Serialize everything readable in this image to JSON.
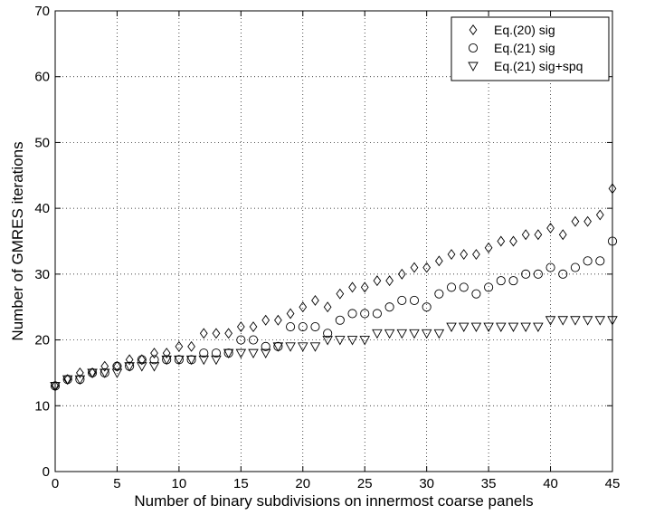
{
  "chart_data": {
    "type": "scatter",
    "title": "",
    "xlabel": "Number of binary subdivisions on innermost coarse panels",
    "ylabel": "Number of GMRES iterations",
    "xlim": [
      0,
      45
    ],
    "ylim": [
      0,
      70
    ],
    "xticks": [
      0,
      5,
      10,
      15,
      20,
      25,
      30,
      35,
      40,
      45
    ],
    "yticks": [
      0,
      10,
      20,
      30,
      40,
      50,
      60,
      70
    ],
    "grid": true,
    "legend_position": "top-right",
    "x": [
      0,
      1,
      2,
      3,
      4,
      5,
      6,
      7,
      8,
      9,
      10,
      11,
      12,
      13,
      14,
      15,
      16,
      17,
      18,
      19,
      20,
      21,
      22,
      23,
      24,
      25,
      26,
      27,
      28,
      29,
      30,
      31,
      32,
      33,
      34,
      35,
      36,
      37,
      38,
      39,
      40,
      41,
      42,
      43,
      44,
      45
    ],
    "series": [
      {
        "name": "Eq.(20) sig",
        "marker": "diamond",
        "values": [
          13,
          14,
          15,
          15,
          16,
          16,
          17,
          17,
          18,
          18,
          19,
          19,
          21,
          21,
          21,
          22,
          22,
          23,
          23,
          24,
          25,
          26,
          25,
          27,
          28,
          28,
          29,
          29,
          30,
          31,
          31,
          32,
          33,
          33,
          33,
          34,
          35,
          35,
          36,
          36,
          37,
          36,
          38,
          38,
          39,
          43
        ]
      },
      {
        "name": "Eq.(21) sig",
        "marker": "circle",
        "values": [
          13,
          14,
          14,
          15,
          15,
          16,
          16,
          17,
          17,
          17,
          17,
          17,
          18,
          18,
          18,
          20,
          20,
          19,
          19,
          22,
          22,
          22,
          21,
          23,
          24,
          24,
          24,
          25,
          26,
          26,
          25,
          27,
          28,
          28,
          27,
          28,
          29,
          29,
          30,
          30,
          31,
          30,
          31,
          32,
          32,
          35
        ]
      },
      {
        "name": "Eq.(21) sig+spq",
        "marker": "triangle-down",
        "values": [
          13,
          14,
          14,
          15,
          15,
          15,
          16,
          16,
          16,
          17,
          17,
          17,
          17,
          17,
          18,
          18,
          18,
          18,
          19,
          19,
          19,
          19,
          20,
          20,
          20,
          20,
          21,
          21,
          21,
          21,
          21,
          21,
          22,
          22,
          22,
          22,
          22,
          22,
          22,
          22,
          23,
          23,
          23,
          23,
          23,
          23
        ]
      }
    ]
  }
}
